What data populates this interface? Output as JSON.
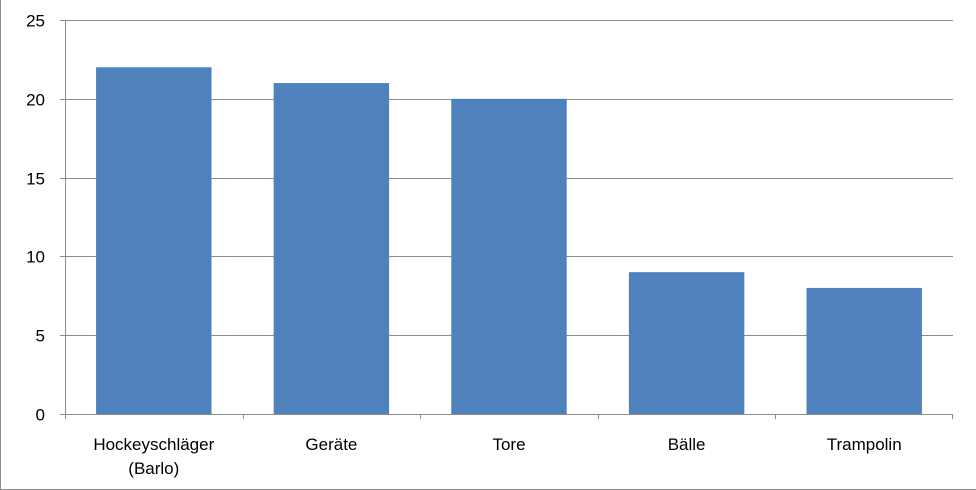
{
  "chart_data": {
    "type": "bar",
    "title": "",
    "xlabel": "",
    "ylabel": "",
    "categories": [
      "Hockeyschläger (Barlo)",
      "Geräte",
      "Tore",
      "Bälle",
      "Trampolin"
    ],
    "category_lines": [
      [
        "Hockeyschläger",
        "(Barlo)"
      ],
      [
        "Geräte"
      ],
      [
        "Tore"
      ],
      [
        "Bälle"
      ],
      [
        "Trampolin"
      ]
    ],
    "values": [
      22,
      21,
      20,
      9,
      8
    ],
    "ylim": [
      0,
      25
    ],
    "yticks": [
      0,
      5,
      10,
      15,
      20,
      25
    ],
    "ytick_labels": [
      "0",
      "5",
      "10",
      "15",
      "20",
      "25"
    ],
    "grid": true,
    "legend": "none",
    "bar_color": "#4f81bd",
    "grid_color": "#8c8c8c"
  }
}
